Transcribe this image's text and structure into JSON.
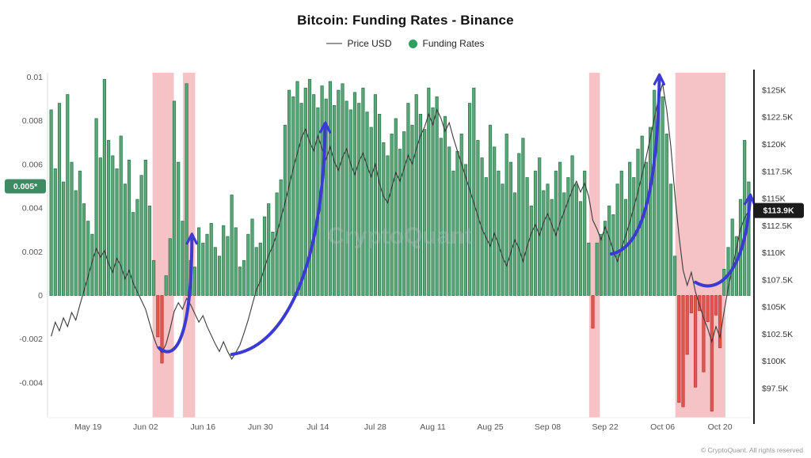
{
  "header": {
    "title": "Bitcoin: Funding Rates - Binance"
  },
  "legend": {
    "price_label": "Price USD",
    "funding_label": "Funding Rates"
  },
  "footer": {
    "copyright": "© CryptoQuant. All rights reserved"
  },
  "watermark": "CryptoQuant",
  "badges": {
    "left": {
      "label": "0.005*",
      "value": 0.005,
      "color": "#3f8a62"
    },
    "right": {
      "label": "$113.9K",
      "value": 113.9,
      "color": "#1b1b1b"
    }
  },
  "colors": {
    "bar_positive": "#5aa878",
    "bar_positive_edge": "#2f7a4f",
    "bar_negative": "#e4574f",
    "bar_negative_edge": "#c23b35",
    "price_line": "#3a3a3a",
    "band": "#f2b3b8",
    "arrow": "#3b3bd1",
    "watermark": "#b9bec6",
    "legend_dot": "#2f9e5f",
    "legend_line": "#999999",
    "axis_text": "#555555"
  },
  "annotations": {
    "highlight_bands": [
      {
        "from": 25.2,
        "to": 30.4
      },
      {
        "from": 32.6,
        "to": 35.6
      },
      {
        "from": 131.6,
        "to": 134.2
      },
      {
        "from": 152.6,
        "to": 164.8
      }
    ],
    "trend_arrows": [
      [
        [
          26.3,
          -0.0024
        ],
        [
          30.5,
          -0.0031
        ],
        [
          34.2,
          -0.0018
        ],
        [
          34.3,
          0.0026
        ]
      ],
      [
        [
          44,
          -0.0027
        ],
        [
          56,
          -0.0024
        ],
        [
          66,
          0.0008
        ],
        [
          66.8,
          0.0077
        ]
      ],
      [
        [
          136.5,
          0.0019
        ],
        [
          142.5,
          0.0021
        ],
        [
          147.6,
          0.0038
        ],
        [
          148.2,
          0.0099
        ]
      ],
      [
        [
          157,
          0.0006
        ],
        [
          162.5,
          0
        ],
        [
          169,
          0.001
        ],
        [
          170.3,
          0.0044
        ]
      ]
    ]
  },
  "chart_data": [
    {
      "type": "bar",
      "name": "Funding Rates",
      "ylim": [
        -0.0056,
        0.0102
      ],
      "y_ticks": [
        {
          "label": "0.01",
          "v": 0.01
        },
        {
          "label": "0.008",
          "v": 0.008
        },
        {
          "label": "0.006",
          "v": 0.006
        },
        {
          "label": "0.004",
          "v": 0.004
        },
        {
          "label": "0.002",
          "v": 0.002
        },
        {
          "label": "0",
          "v": 0
        },
        {
          "label": "-0.002",
          "v": -0.002
        },
        {
          "label": "-0.004",
          "v": -0.004
        }
      ],
      "x_ticks": [
        {
          "label": "May 19",
          "index": 9
        },
        {
          "label": "Jun 02",
          "index": 23
        },
        {
          "label": "Jun 16",
          "index": 37
        },
        {
          "label": "Jun 30",
          "index": 51
        },
        {
          "label": "Jul 14",
          "index": 65
        },
        {
          "label": "Jul 28",
          "index": 79
        },
        {
          "label": "Aug 11",
          "index": 93
        },
        {
          "label": "Aug 25",
          "index": 107
        },
        {
          "label": "Sep 08",
          "index": 121
        },
        {
          "label": "Sep 22",
          "index": 135
        },
        {
          "label": "Oct 06",
          "index": 149
        },
        {
          "label": "Oct 20",
          "index": 163
        }
      ],
      "values": [
        0.0085,
        0.0058,
        0.0088,
        0.0052,
        0.0092,
        0.0061,
        0.0048,
        0.0057,
        0.0042,
        0.0034,
        0.0028,
        0.0081,
        0.0063,
        0.0099,
        0.0071,
        0.0064,
        0.0058,
        0.0073,
        0.0051,
        0.0062,
        0.0038,
        0.0044,
        0.0055,
        0.0062,
        0.0041,
        0.0016,
        -0.0019,
        -0.0031,
        0.0009,
        0.0026,
        0.0089,
        0.0061,
        0.0034,
        0.0097,
        0.0016,
        0.0013,
        0.0031,
        0.0024,
        0.0028,
        0.0033,
        0.0022,
        0.0018,
        0.0032,
        0.0027,
        0.0046,
        0.0031,
        0.0013,
        0.0016,
        0.0028,
        0.0035,
        0.0022,
        0.0024,
        0.0036,
        0.0042,
        0.0029,
        0.0047,
        0.0053,
        0.0078,
        0.0094,
        0.0091,
        0.0098,
        0.0088,
        0.0095,
        0.0099,
        0.0092,
        0.0086,
        0.0096,
        0.009,
        0.0098,
        0.0087,
        0.0094,
        0.0097,
        0.0089,
        0.0085,
        0.0093,
        0.0088,
        0.0095,
        0.0084,
        0.0077,
        0.0092,
        0.0083,
        0.007,
        0.0064,
        0.0074,
        0.0081,
        0.0067,
        0.0075,
        0.0088,
        0.0078,
        0.0092,
        0.0083,
        0.0076,
        0.0095,
        0.0086,
        0.0091,
        0.0072,
        0.0082,
        0.0068,
        0.0057,
        0.0066,
        0.0074,
        0.006,
        0.0088,
        0.0095,
        0.0071,
        0.0063,
        0.0054,
        0.0078,
        0.0068,
        0.0057,
        0.0051,
        0.0074,
        0.0061,
        0.0047,
        0.0065,
        0.0072,
        0.0054,
        0.0041,
        0.0057,
        0.0063,
        0.0048,
        0.0051,
        0.0044,
        0.0057,
        0.0061,
        0.0047,
        0.0054,
        0.0064,
        0.0051,
        0.0043,
        0.0057,
        0.0024,
        -0.0015,
        0.0024,
        0.0028,
        0.0034,
        0.0041,
        0.0037,
        0.0051,
        0.0057,
        0.0044,
        0.0061,
        0.0054,
        0.0067,
        0.0073,
        0.0061,
        0.0077,
        0.0094,
        0.0087,
        0.0091,
        0.0074,
        0.0051,
        0.0018,
        -0.0049,
        -0.0051,
        -0.0027,
        -0.0008,
        -0.0042,
        -0.0007,
        -0.0035,
        -0.0012,
        -0.0053,
        -0.0009,
        -0.0024,
        0.0012,
        0.0022,
        0.0035,
        0.0027,
        0.0044,
        0.0071,
        0.0052
      ]
    },
    {
      "type": "line",
      "name": "Price USD",
      "ylim_k": [
        94.8,
        126.6
      ],
      "y_ticks": [
        {
          "label": "$125K",
          "v": 125
        },
        {
          "label": "$122.5K",
          "v": 122.5
        },
        {
          "label": "$120K",
          "v": 120
        },
        {
          "label": "$117.5K",
          "v": 117.5
        },
        {
          "label": "$115K",
          "v": 115
        },
        {
          "label": "$112.5K",
          "v": 112.5
        },
        {
          "label": "$110K",
          "v": 110
        },
        {
          "label": "$107.5K",
          "v": 107.5
        },
        {
          "label": "$105K",
          "v": 105
        },
        {
          "label": "$102.5K",
          "v": 102.5
        },
        {
          "label": "$100K",
          "v": 100
        },
        {
          "label": "$97.5K",
          "v": 97.5
        }
      ],
      "last_value_label": "$113.9K",
      "values_usd_k": [
        102.3,
        103.6,
        102.8,
        104.0,
        103.2,
        104.5,
        103.8,
        105.2,
        106.5,
        107.8,
        109.2,
        110.4,
        109.6,
        110.2,
        109.0,
        108.2,
        109.5,
        108.8,
        107.6,
        108.4,
        107.2,
        106.4,
        105.6,
        104.8,
        103.5,
        102.2,
        101.2,
        100.8,
        101.6,
        103.0,
        104.6,
        105.4,
        104.8,
        105.8,
        105.2,
        104.4,
        103.6,
        104.2,
        103.2,
        102.4,
        101.6,
        100.9,
        101.8,
        100.9,
        100.2,
        100.8,
        101.5,
        102.6,
        103.8,
        105.2,
        106.6,
        107.4,
        108.6,
        109.8,
        110.6,
        111.8,
        113.2,
        114.6,
        116.2,
        117.8,
        119.2,
        120.6,
        121.4,
        120.2,
        119.4,
        120.8,
        119.6,
        118.6,
        119.8,
        118.4,
        117.6,
        118.8,
        119.6,
        118.2,
        117.2,
        118.4,
        119.2,
        118.0,
        117.0,
        118.2,
        116.4,
        115.2,
        114.6,
        116.0,
        117.4,
        116.6,
        117.8,
        119.0,
        118.2,
        119.6,
        120.8,
        121.6,
        122.8,
        121.8,
        123.2,
        122.4,
        121.2,
        122.0,
        120.6,
        119.4,
        118.2,
        117.0,
        115.8,
        114.6,
        113.4,
        112.2,
        111.4,
        110.6,
        111.8,
        110.8,
        109.6,
        108.8,
        110.0,
        111.2,
        110.4,
        109.2,
        110.6,
        111.8,
        112.6,
        111.6,
        112.8,
        113.6,
        112.6,
        111.6,
        112.8,
        113.8,
        114.8,
        115.8,
        116.6,
        115.6,
        116.4,
        115.2,
        113.0,
        112.2,
        111.2,
        112.4,
        111.4,
        110.2,
        109.2,
        110.4,
        111.6,
        112.8,
        114.2,
        115.6,
        117.2,
        118.8,
        120.6,
        122.4,
        124.2,
        125.6,
        123.2,
        119.8,
        115.4,
        111.6,
        108.4,
        107.0,
        108.2,
        106.4,
        105.2,
        104.0,
        103.0,
        101.8,
        103.2,
        102.2,
        104.6,
        106.8,
        108.6,
        110.4,
        112.2,
        113.2,
        113.9
      ]
    }
  ]
}
